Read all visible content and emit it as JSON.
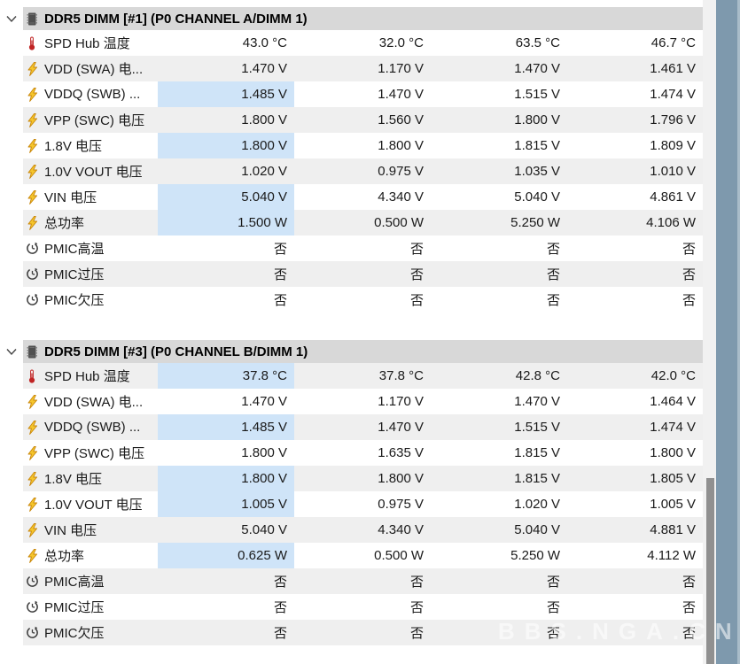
{
  "watermark": "BBS.NGA.CN",
  "colors": {
    "header_bg": "#d8d8d8",
    "row_stripe": "#efefef",
    "highlight_cell": "#cfe4f8",
    "side_band": "#7e99ad",
    "scroll_thumb": "#909090"
  },
  "sections": [
    {
      "title": "DDR5 DIMM [#1] (P0 CHANNEL A/DIMM 1)",
      "icon": "memory-chip",
      "expanded": true,
      "stripe_offset": 0,
      "rows": [
        {
          "icon": "thermometer",
          "label": "SPD Hub 温度",
          "highlight": false,
          "values": [
            "43.0 °C",
            "32.0 °C",
            "63.5 °C",
            "46.7 °C"
          ]
        },
        {
          "icon": "bolt",
          "label": "VDD (SWA) 电...",
          "highlight": false,
          "values": [
            "1.470 V",
            "1.170 V",
            "1.470 V",
            "1.461 V"
          ]
        },
        {
          "icon": "bolt",
          "label": "VDDQ (SWB) ...",
          "highlight": true,
          "values": [
            "1.485 V",
            "1.470 V",
            "1.515 V",
            "1.474 V"
          ]
        },
        {
          "icon": "bolt",
          "label": "VPP (SWC) 电压",
          "highlight": false,
          "values": [
            "1.800 V",
            "1.560 V",
            "1.800 V",
            "1.796 V"
          ]
        },
        {
          "icon": "bolt",
          "label": "1.8V 电压",
          "highlight": true,
          "values": [
            "1.800 V",
            "1.800 V",
            "1.815 V",
            "1.809 V"
          ]
        },
        {
          "icon": "bolt",
          "label": "1.0V VOUT 电压",
          "highlight": false,
          "values": [
            "1.020 V",
            "0.975 V",
            "1.035 V",
            "1.010 V"
          ]
        },
        {
          "icon": "bolt",
          "label": "VIN 电压",
          "highlight": true,
          "values": [
            "5.040 V",
            "4.340 V",
            "5.040 V",
            "4.861 V"
          ]
        },
        {
          "icon": "bolt",
          "label": "总功率",
          "highlight": true,
          "values": [
            "1.500 W",
            "0.500 W",
            "5.250 W",
            "4.106 W"
          ]
        },
        {
          "icon": "clock",
          "label": "PMIC高温",
          "highlight": false,
          "values": [
            "否",
            "否",
            "否",
            "否"
          ]
        },
        {
          "icon": "clock",
          "label": "PMIC过压",
          "highlight": false,
          "values": [
            "否",
            "否",
            "否",
            "否"
          ]
        },
        {
          "icon": "clock",
          "label": "PMIC欠压",
          "highlight": false,
          "values": [
            "否",
            "否",
            "否",
            "否"
          ]
        }
      ]
    },
    {
      "title": "DDR5 DIMM [#3] (P0 CHANNEL B/DIMM 1)",
      "icon": "memory-chip",
      "expanded": true,
      "stripe_offset": 1,
      "rows": [
        {
          "icon": "thermometer",
          "label": "SPD Hub 温度",
          "highlight": true,
          "values": [
            "37.8 °C",
            "37.8 °C",
            "42.8 °C",
            "42.0 °C"
          ]
        },
        {
          "icon": "bolt",
          "label": "VDD (SWA) 电...",
          "highlight": false,
          "values": [
            "1.470 V",
            "1.170 V",
            "1.470 V",
            "1.464 V"
          ]
        },
        {
          "icon": "bolt",
          "label": "VDDQ (SWB) ...",
          "highlight": true,
          "values": [
            "1.485 V",
            "1.470 V",
            "1.515 V",
            "1.474 V"
          ]
        },
        {
          "icon": "bolt",
          "label": "VPP (SWC) 电压",
          "highlight": false,
          "values": [
            "1.800 V",
            "1.635 V",
            "1.815 V",
            "1.800 V"
          ]
        },
        {
          "icon": "bolt",
          "label": "1.8V 电压",
          "highlight": true,
          "values": [
            "1.800 V",
            "1.800 V",
            "1.815 V",
            "1.805 V"
          ]
        },
        {
          "icon": "bolt",
          "label": "1.0V VOUT 电压",
          "highlight": true,
          "values": [
            "1.005 V",
            "0.975 V",
            "1.020 V",
            "1.005 V"
          ]
        },
        {
          "icon": "bolt",
          "label": "VIN 电压",
          "highlight": false,
          "values": [
            "5.040 V",
            "4.340 V",
            "5.040 V",
            "4.881 V"
          ]
        },
        {
          "icon": "bolt",
          "label": "总功率",
          "highlight": true,
          "values": [
            "0.625 W",
            "0.500 W",
            "5.250 W",
            "4.112 W"
          ]
        },
        {
          "icon": "clock",
          "label": "PMIC高温",
          "highlight": false,
          "values": [
            "否",
            "否",
            "否",
            "否"
          ]
        },
        {
          "icon": "clock",
          "label": "PMIC过压",
          "highlight": false,
          "values": [
            "否",
            "否",
            "否",
            "否"
          ]
        },
        {
          "icon": "clock",
          "label": "PMIC欠压",
          "highlight": false,
          "values": [
            "否",
            "否",
            "否",
            "否"
          ]
        }
      ]
    }
  ]
}
